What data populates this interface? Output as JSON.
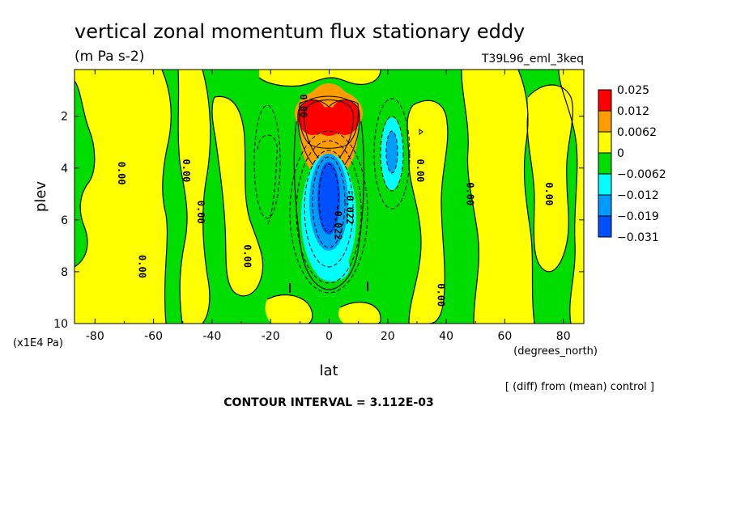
{
  "chart_data": {
    "type": "heatmap",
    "title": "vertical zonal momentum flux stationary eddy",
    "units": "(m Pa s-2)",
    "run_label": "T39L96_eml_3keq",
    "xlabel": "lat",
    "x_units": "(degrees_north)",
    "ylabel": "plev",
    "y_units": "(x1E4 Pa)",
    "xlim": [
      -87,
      87
    ],
    "ylim": [
      10,
      0.2
    ],
    "x_ticks": [
      "-80",
      "-60",
      "-40",
      "-20",
      "0",
      "20",
      "40",
      "60",
      "80"
    ],
    "y_ticks": [
      "2",
      "4",
      "6",
      "8",
      "10"
    ],
    "contour_interval": "CONTOUR INTERVAL = 3.112E-03",
    "subtitle": "[ (diff) from (mean) control ]",
    "legend": {
      "placement": "right",
      "labels": [
        "0.025",
        "0.012",
        "0.0062",
        "0",
        "−0.0062",
        "−0.012",
        "−0.019",
        "−0.031"
      ],
      "colors": [
        "#ff0000",
        "#ff9d00",
        "#ffff00",
        "#00dd00",
        "#00ffff",
        "#009bff",
        "#0050ff"
      ]
    },
    "contour_labels": [
      {
        "text": "0.00",
        "lat": -72,
        "plev": 4.2
      },
      {
        "text": "0.00",
        "lat": -65,
        "plev": 7.8
      },
      {
        "text": "0.00",
        "lat": -50,
        "plev": 4.1
      },
      {
        "text": "0.00",
        "lat": -45,
        "plev": 5.7
      },
      {
        "text": "0.00",
        "lat": -29,
        "plev": 7.4
      },
      {
        "text": "0.00",
        "lat": 30,
        "plev": 4.1
      },
      {
        "text": "0.00",
        "lat": 37,
        "plev": 8.9
      },
      {
        "text": "0.00",
        "lat": 47,
        "plev": 5.0
      },
      {
        "text": "0.00",
        "lat": 74,
        "plev": 5.0
      },
      {
        "text": "0.00",
        "lat": -10,
        "plev": 1.6
      },
      {
        "text": "-0.022",
        "lat": 2,
        "plev": 6.1
      },
      {
        "text": "-0.022",
        "lat": 6,
        "plev": 5.5
      }
    ],
    "fields": [
      {
        "kind": "pos",
        "lat": -1,
        "plev": 2.0,
        "slat": 10,
        "splev": 0.9,
        "amp": 0.03
      },
      {
        "kind": "pos",
        "lat": 0,
        "plev": 2.9,
        "slat": 8,
        "splev": 0.9,
        "amp": 0.012
      },
      {
        "kind": "neg",
        "lat": 0,
        "plev": 5.2,
        "slat": 5.5,
        "splev": 1.8,
        "amp": 0.034
      },
      {
        "kind": "neg",
        "lat": 2,
        "plev": 7.8,
        "slat": 7,
        "splev": 0.9,
        "amp": 0.012
      },
      {
        "kind": "neg",
        "lat": 21,
        "plev": 3.6,
        "slat": 5,
        "splev": 1.6,
        "amp": 0.016
      },
      {
        "kind": "neg",
        "lat": -26,
        "plev": 3.5,
        "slat": 4.5,
        "splev": 2.0,
        "amp": 0.004
      },
      {
        "kind": "pos",
        "lat": -3,
        "plev": 0.6,
        "slat": 16,
        "splev": 0.4,
        "amp": 0.004
      },
      {
        "kind": "pos",
        "lat": 32,
        "plev": 2.5,
        "slat": 3,
        "splev": 1.2,
        "amp": 0.004
      },
      {
        "kind": "pos",
        "lat": 60,
        "plev": 5.0,
        "slat": 20,
        "splev": 20,
        "amp": 0.0
      }
    ]
  }
}
